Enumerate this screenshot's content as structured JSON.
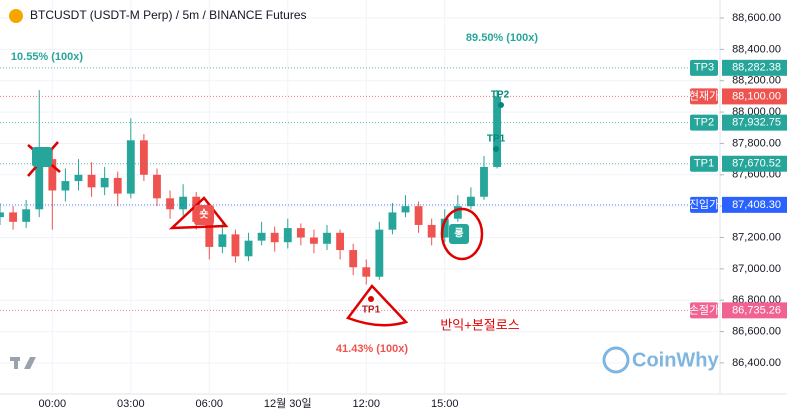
{
  "header": {
    "title": "BTCUSDT (USDT-M Perp) / 5m / BINANCE Futures"
  },
  "chart_data": {
    "type": "candlestick",
    "x": [
      -2,
      -1.5,
      -1,
      -0.5,
      0,
      0.5,
      1,
      1.5,
      2,
      2.5,
      3,
      3.5,
      4,
      4.5,
      5,
      5.5,
      6,
      6.5,
      7,
      7.5,
      8,
      8.5,
      9,
      9.5,
      10,
      10.5,
      11,
      11.5,
      12,
      12.5,
      13,
      13.5,
      14,
      14.5,
      15,
      15.5,
      16,
      16.5,
      17
    ],
    "open": [
      87330,
      87360,
      87300,
      87380,
      87700,
      87500,
      87560,
      87600,
      87520,
      87580,
      87480,
      87820,
      87600,
      87450,
      87380,
      87460,
      87300,
      87140,
      87220,
      87080,
      87180,
      87230,
      87170,
      87260,
      87200,
      87160,
      87230,
      87120,
      87010,
      86950,
      87250,
      87360,
      87400,
      87280,
      87200,
      87320,
      87400,
      87460,
      87650
    ],
    "high": [
      87420,
      87400,
      87440,
      88140,
      87760,
      87640,
      87700,
      87680,
      87650,
      87620,
      87960,
      87860,
      87640,
      87500,
      87540,
      87490,
      87330,
      87290,
      87250,
      87230,
      87300,
      87270,
      87320,
      87290,
      87250,
      87280,
      87250,
      87160,
      87060,
      87300,
      87420,
      87470,
      87430,
      87320,
      87380,
      87470,
      87520,
      87720,
      88140
    ],
    "low": [
      87280,
      87250,
      87260,
      87330,
      87250,
      87430,
      87500,
      87460,
      87470,
      87400,
      87450,
      87560,
      87400,
      87320,
      87340,
      87250,
      87060,
      87100,
      87040,
      87050,
      87150,
      87110,
      87130,
      87150,
      87100,
      87120,
      87060,
      86960,
      86900,
      86930,
      87220,
      87330,
      87230,
      87150,
      87170,
      87300,
      87380,
      87440,
      87640
    ],
    "close": [
      87360,
      87300,
      87380,
      87700,
      87500,
      87560,
      87600,
      87520,
      87580,
      87480,
      87820,
      87600,
      87450,
      87380,
      87460,
      87300,
      87140,
      87220,
      87080,
      87180,
      87230,
      87170,
      87260,
      87200,
      87160,
      87230,
      87120,
      87010,
      86950,
      87250,
      87360,
      87400,
      87280,
      87200,
      87320,
      87400,
      87460,
      87650,
      88100
    ],
    "up_color": "#26a69a",
    "down_color": "#ef5350",
    "xlim": [
      -2,
      25.33
    ],
    "xticks": [
      {
        "value": 0,
        "label": "00:00"
      },
      {
        "value": 3,
        "label": "03:00"
      },
      {
        "value": 6,
        "label": "06:00"
      },
      {
        "value": 9,
        "label": "12월 30일"
      },
      {
        "value": 12,
        "label": "12:00"
      },
      {
        "value": 15,
        "label": "15:00"
      }
    ],
    "ylim": [
      86240,
      88715
    ],
    "yticks": [
      {
        "value": 86400,
        "label": "86,400.00"
      },
      {
        "value": 86600,
        "label": "86,600.00"
      },
      {
        "value": 86800,
        "label": "86,800.00"
      },
      {
        "value": 87000,
        "label": "87,000.00"
      },
      {
        "value": 87200,
        "label": "87,200.00"
      },
      {
        "value": 87400,
        "label": "87,400.00"
      },
      {
        "value": 87600,
        "label": "87,600.00"
      },
      {
        "value": 87800,
        "label": "87,800.00"
      },
      {
        "value": 88000,
        "label": "88,000.00"
      },
      {
        "value": 88200,
        "label": "88,200.00"
      },
      {
        "value": 88400,
        "label": "88,400.00"
      },
      {
        "value": 88600,
        "label": "88,600.00"
      }
    ],
    "levels": [
      {
        "name": "TP3",
        "value": 88282.38,
        "label": "88,282.38",
        "color": "#26a69a"
      },
      {
        "name": "현재가",
        "value": 88100.0,
        "label": "88,100.00",
        "color": "#ef5350"
      },
      {
        "name": "TP2",
        "value": 87932.75,
        "label": "87,932.75",
        "color": "#26a69a"
      },
      {
        "name": "TP1",
        "value": 87670.52,
        "label": "87,670.52",
        "color": "#26a69a"
      },
      {
        "name": "진입가",
        "value": 87408.3,
        "label": "87,408.30",
        "color": "#2962ff"
      },
      {
        "name": "손절가",
        "value": 86735.26,
        "label": "86,735.26",
        "color": "#f06292"
      }
    ],
    "annotations": [
      "10.55% (100x)",
      "89.50% (100x)",
      "41.43% (100x)",
      "TP1",
      "TP2",
      "TP1",
      "숏",
      "롱",
      "반익+본절로스"
    ],
    "watermark": "CoinWhy"
  }
}
